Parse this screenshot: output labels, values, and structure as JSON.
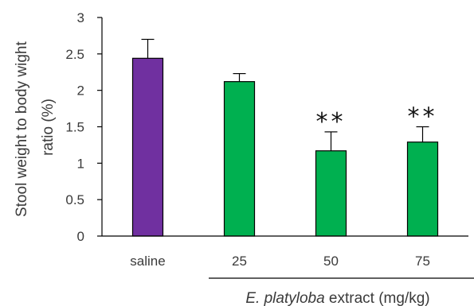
{
  "chart_data": {
    "type": "bar",
    "categories": [
      "saline",
      "25",
      "50",
      "75"
    ],
    "values": [
      2.44,
      2.12,
      1.17,
      1.29
    ],
    "errors": [
      0.26,
      0.11,
      0.26,
      0.21
    ],
    "significance": [
      "",
      "",
      "**",
      "**"
    ],
    "colors": [
      "#7030a0",
      "#00b050",
      "#00b050",
      "#00b050"
    ],
    "ylim": [
      0,
      3
    ],
    "yticks": [
      "0",
      "0.5",
      "1",
      "1.5",
      "2",
      "2.5",
      "3"
    ],
    "ylabel_line1": "Stool weight to body wight",
    "ylabel_line2": "ratio (%)",
    "xlabel_italic": "E. platyloba",
    "xlabel_rest": " extract (mg/kg)",
    "grid": false,
    "legend": false
  }
}
